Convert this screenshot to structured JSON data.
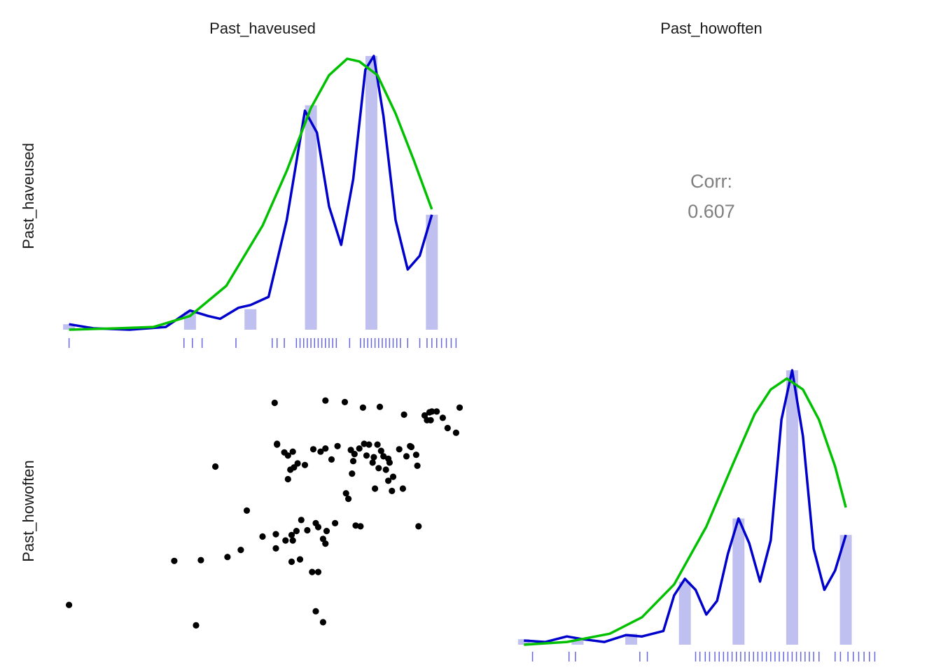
{
  "chart_data": {
    "type": "scatter",
    "variables": [
      "Past_haveused",
      "Past_howoften"
    ],
    "colors": {
      "bar": "#c0c0f0",
      "kde": "#0000cc",
      "normal": "#00c000",
      "rug": "#6666dd",
      "point": "#000000",
      "corr_text": "#7f7f7f"
    },
    "diag_1": {
      "name": "Past_haveused",
      "xlim": [
        1.35,
        4.65
      ],
      "bars": [
        {
          "x": 1.4,
          "height": 0.02
        },
        {
          "x": 2.4,
          "height": 0.065
        },
        {
          "x": 2.9,
          "height": 0.075
        },
        {
          "x": 3.4,
          "height": 0.82
        },
        {
          "x": 3.9,
          "height": 1.0
        },
        {
          "x": 4.4,
          "height": 0.42
        }
      ],
      "kde": [
        [
          1.4,
          0.02
        ],
        [
          1.6,
          0.005
        ],
        [
          1.9,
          0.0
        ],
        [
          2.2,
          0.01
        ],
        [
          2.4,
          0.07
        ],
        [
          2.55,
          0.05
        ],
        [
          2.65,
          0.04
        ],
        [
          2.8,
          0.08
        ],
        [
          2.9,
          0.09
        ],
        [
          3.05,
          0.12
        ],
        [
          3.2,
          0.4
        ],
        [
          3.35,
          0.8
        ],
        [
          3.45,
          0.72
        ],
        [
          3.55,
          0.45
        ],
        [
          3.65,
          0.31
        ],
        [
          3.75,
          0.55
        ],
        [
          3.85,
          0.95
        ],
        [
          3.92,
          1.0
        ],
        [
          4.0,
          0.78
        ],
        [
          4.1,
          0.4
        ],
        [
          4.2,
          0.22
        ],
        [
          4.3,
          0.27
        ],
        [
          4.4,
          0.42
        ]
      ],
      "normal": [
        [
          1.4,
          0.0
        ],
        [
          1.8,
          0.005
        ],
        [
          2.1,
          0.01
        ],
        [
          2.4,
          0.05
        ],
        [
          2.7,
          0.16
        ],
        [
          3.0,
          0.38
        ],
        [
          3.2,
          0.58
        ],
        [
          3.4,
          0.81
        ],
        [
          3.55,
          0.93
        ],
        [
          3.7,
          0.99
        ],
        [
          3.8,
          0.98
        ],
        [
          3.95,
          0.93
        ],
        [
          4.1,
          0.79
        ],
        [
          4.25,
          0.62
        ],
        [
          4.4,
          0.44
        ]
      ],
      "rug": [
        1.4,
        2.35,
        2.42,
        2.5,
        2.78,
        3.08,
        3.12,
        3.18,
        3.28,
        3.31,
        3.34,
        3.37,
        3.4,
        3.43,
        3.46,
        3.49,
        3.52,
        3.55,
        3.58,
        3.61,
        3.72,
        3.81,
        3.84,
        3.87,
        3.9,
        3.93,
        3.96,
        3.99,
        4.02,
        4.05,
        4.08,
        4.11,
        4.14,
        4.2,
        4.3,
        4.36,
        4.4,
        4.44,
        4.48,
        4.52,
        4.56,
        4.6
      ]
    },
    "diag_2": {
      "name": "Past_howoften",
      "xlim": [
        0.9,
        4.6
      ],
      "bars": [
        {
          "x": 1.0,
          "height": 0.02
        },
        {
          "x": 1.5,
          "height": 0.015
        },
        {
          "x": 2.0,
          "height": 0.04
        },
        {
          "x": 2.5,
          "height": 0.23
        },
        {
          "x": 3.0,
          "height": 0.46
        },
        {
          "x": 3.5,
          "height": 1.0
        },
        {
          "x": 4.0,
          "height": 0.4
        }
      ],
      "kde": [
        [
          1.0,
          0.015
        ],
        [
          1.2,
          0.01
        ],
        [
          1.4,
          0.03
        ],
        [
          1.55,
          0.02
        ],
        [
          1.75,
          0.01
        ],
        [
          1.95,
          0.035
        ],
        [
          2.1,
          0.03
        ],
        [
          2.3,
          0.05
        ],
        [
          2.4,
          0.18
        ],
        [
          2.5,
          0.24
        ],
        [
          2.6,
          0.2
        ],
        [
          2.7,
          0.11
        ],
        [
          2.8,
          0.16
        ],
        [
          2.9,
          0.33
        ],
        [
          3.0,
          0.46
        ],
        [
          3.1,
          0.37
        ],
        [
          3.2,
          0.23
        ],
        [
          3.3,
          0.38
        ],
        [
          3.4,
          0.82
        ],
        [
          3.5,
          1.0
        ],
        [
          3.6,
          0.76
        ],
        [
          3.7,
          0.35
        ],
        [
          3.8,
          0.2
        ],
        [
          3.9,
          0.27
        ],
        [
          4.0,
          0.4
        ]
      ],
      "normal": [
        [
          1.0,
          0.0
        ],
        [
          1.4,
          0.01
        ],
        [
          1.8,
          0.04
        ],
        [
          2.1,
          0.1
        ],
        [
          2.4,
          0.22
        ],
        [
          2.7,
          0.43
        ],
        [
          2.95,
          0.66
        ],
        [
          3.15,
          0.84
        ],
        [
          3.3,
          0.93
        ],
        [
          3.45,
          0.97
        ],
        [
          3.6,
          0.93
        ],
        [
          3.75,
          0.82
        ],
        [
          3.9,
          0.65
        ],
        [
          4.0,
          0.5
        ]
      ],
      "rug": [
        1.08,
        1.42,
        1.48,
        2.08,
        2.15,
        2.6,
        2.64,
        2.69,
        2.73,
        2.78,
        2.82,
        2.86,
        2.9,
        2.94,
        2.98,
        3.02,
        3.06,
        3.1,
        3.14,
        3.18,
        3.22,
        3.26,
        3.3,
        3.34,
        3.38,
        3.42,
        3.46,
        3.5,
        3.54,
        3.58,
        3.62,
        3.66,
        3.7,
        3.75,
        3.9,
        3.95,
        4.02,
        4.07,
        4.12,
        4.17,
        4.22,
        4.27
      ]
    },
    "scatter": {
      "x_var": "Past_haveused",
      "y_var": "Past_howoften",
      "xlim": [
        1.35,
        4.65
      ],
      "ylim": [
        0.95,
        4.6
      ],
      "points": [
        [
          1.4,
          1.58
        ],
        [
          2.45,
          1.32
        ],
        [
          2.27,
          2.14
        ],
        [
          2.49,
          2.15
        ],
        [
          2.71,
          2.19
        ],
        [
          2.82,
          2.28
        ],
        [
          2.87,
          2.78
        ],
        [
          3.0,
          2.45
        ],
        [
          3.11,
          2.48
        ],
        [
          3.19,
          2.4
        ],
        [
          3.25,
          2.4
        ],
        [
          3.24,
          2.47
        ],
        [
          3.11,
          2.3
        ],
        [
          3.24,
          2.13
        ],
        [
          3.31,
          2.16
        ],
        [
          3.28,
          2.52
        ],
        [
          3.32,
          2.66
        ],
        [
          3.37,
          2.53
        ],
        [
          3.44,
          2.62
        ],
        [
          3.46,
          2.57
        ],
        [
          3.5,
          2.42
        ],
        [
          3.52,
          2.36
        ],
        [
          3.53,
          2.52
        ],
        [
          3.6,
          2.62
        ],
        [
          3.46,
          2.0
        ],
        [
          3.44,
          1.5
        ],
        [
          3.5,
          1.36
        ],
        [
          3.41,
          2.0
        ],
        [
          3.77,
          2.59
        ],
        [
          3.81,
          2.58
        ],
        [
          3.69,
          3.0
        ],
        [
          3.71,
          2.93
        ],
        [
          3.93,
          3.06
        ],
        [
          4.08,
          3.21
        ],
        [
          4.07,
          3.03
        ],
        [
          4.16,
          3.06
        ],
        [
          4.29,
          2.58
        ],
        [
          3.12,
          3.63
        ],
        [
          3.12,
          3.62
        ],
        [
          3.18,
          3.52
        ],
        [
          3.21,
          3.48
        ],
        [
          3.25,
          3.53
        ],
        [
          3.29,
          3.38
        ],
        [
          3.35,
          3.36
        ],
        [
          3.42,
          3.56
        ],
        [
          3.48,
          3.53
        ],
        [
          3.52,
          3.57
        ],
        [
          3.57,
          3.43
        ],
        [
          3.62,
          3.6
        ],
        [
          3.73,
          3.55
        ],
        [
          3.74,
          3.25
        ],
        [
          3.75,
          3.41
        ],
        [
          3.76,
          3.5
        ],
        [
          3.8,
          3.57
        ],
        [
          3.84,
          3.63
        ],
        [
          3.86,
          3.48
        ],
        [
          3.88,
          3.62
        ],
        [
          3.91,
          3.39
        ],
        [
          3.92,
          3.46
        ],
        [
          3.95,
          3.62
        ],
        [
          3.98,
          3.54
        ],
        [
          4.0,
          3.47
        ],
        [
          4.04,
          3.44
        ],
        [
          3.96,
          3.32
        ],
        [
          4.02,
          3.3
        ],
        [
          4.04,
          3.16
        ],
        [
          4.05,
          3.39
        ],
        [
          4.13,
          3.56
        ],
        [
          4.19,
          3.47
        ],
        [
          4.23,
          3.59
        ],
        [
          4.27,
          3.49
        ],
        [
          4.28,
          3.35
        ],
        [
          4.34,
          3.99
        ],
        [
          4.36,
          3.93
        ],
        [
          4.38,
          4.03
        ],
        [
          4.4,
          4.04
        ],
        [
          4.39,
          3.93
        ],
        [
          4.44,
          4.04
        ],
        [
          4.49,
          3.96
        ],
        [
          4.53,
          3.83
        ],
        [
          4.6,
          3.77
        ],
        [
          4.63,
          4.09
        ],
        [
          4.17,
          4.0
        ],
        [
          3.97,
          4.1
        ],
        [
          3.83,
          4.09
        ],
        [
          3.68,
          4.16
        ],
        [
          3.52,
          4.18
        ],
        [
          3.1,
          4.15
        ],
        [
          3.26,
          3.33
        ],
        [
          3.23,
          3.3
        ],
        [
          3.21,
          3.18
        ],
        [
          4.22,
          3.6
        ],
        [
          2.61,
          3.34
        ]
      ]
    },
    "corr_label": "Corr:",
    "corr_value": "0.607",
    "titles": {
      "col1": "Past_haveused",
      "col2": "Past_howoften",
      "row1": "Past_haveused",
      "row2": "Past_howoften"
    }
  }
}
